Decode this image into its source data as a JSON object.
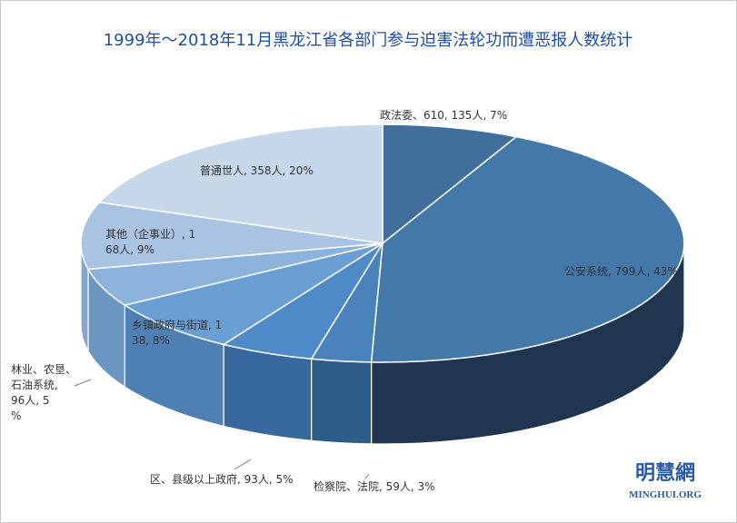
{
  "chart_data": {
    "type": "pie",
    "title": "1999年～2018年11月黑龙江省各部门参与迫害法轮功而遭恶报人数统计",
    "slices": [
      {
        "label": "政法委、610, 135人, 7%",
        "value": 135,
        "percent": 7,
        "color": "#3f6f9a",
        "side": "#2a4f72"
      },
      {
        "label": "公安系统, 799人, 43%",
        "value": 799,
        "percent": 43,
        "color": "#4478a8",
        "side": "#1f3550"
      },
      {
        "label": "检察院、法院, 59人, 3%",
        "value": 59,
        "percent": 3,
        "color": "#4a82bb",
        "side": "#2e5d8c"
      },
      {
        "label": "区、县级以上政府, 93人, 5%",
        "value": 93,
        "percent": 5,
        "color": "#4f8ac8",
        "side": "#3768a0"
      },
      {
        "label": "乡镇政府与街道, 138, 8%",
        "value": 138,
        "percent": 8,
        "color": "#6a9fd4",
        "side": "#4e80b4"
      },
      {
        "label": "林业、农垦、石油系统, 96人, 5%",
        "value": 96,
        "percent": 5,
        "color": "#8cb3dc",
        "side": "#6c95c2"
      },
      {
        "label": "其他（企事业）, 168人, 9%",
        "value": 168,
        "percent": 9,
        "color": "#a9c3e3",
        "side": "#86a6cc"
      },
      {
        "label": "普通世人, 358人, 20%",
        "value": 358,
        "percent": 20,
        "color": "#c7d7ea",
        "side": "#a3b9d4"
      }
    ]
  },
  "logo": {
    "cn": "明慧網",
    "en": "MINGHUI.ORG"
  }
}
